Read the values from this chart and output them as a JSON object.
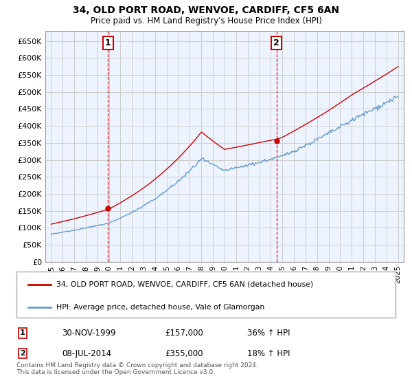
{
  "title": "34, OLD PORT ROAD, WENVOE, CARDIFF, CF5 6AN",
  "subtitle": "Price paid vs. HM Land Registry's House Price Index (HPI)",
  "legend_line1": "34, OLD PORT ROAD, WENVOE, CARDIFF, CF5 6AN (detached house)",
  "legend_line2": "HPI: Average price, detached house, Vale of Glamorgan",
  "footer": "Contains HM Land Registry data © Crown copyright and database right 2024.\nThis data is licensed under the Open Government Licence v3.0.",
  "sale1_label": "1",
  "sale1_date": "30-NOV-1999",
  "sale1_price": "£157,000",
  "sale1_hpi": "36% ↑ HPI",
  "sale2_label": "2",
  "sale2_date": "08-JUL-2014",
  "sale2_price": "£355,000",
  "sale2_hpi": "18% ↑ HPI",
  "red_color": "#cc0000",
  "blue_color": "#6699cc",
  "grid_color": "#cccccc",
  "bg_color": "#ddeeff",
  "plot_bg": "#eef4ff",
  "ylim": [
    0,
    680000
  ],
  "yticks": [
    0,
    50000,
    100000,
    150000,
    200000,
    250000,
    300000,
    350000,
    400000,
    450000,
    500000,
    550000,
    600000,
    650000
  ],
  "xtick_years": [
    1995,
    1996,
    1997,
    1998,
    1999,
    2000,
    2001,
    2002,
    2003,
    2004,
    2005,
    2006,
    2007,
    2008,
    2009,
    2010,
    2011,
    2012,
    2013,
    2014,
    2015,
    2016,
    2017,
    2018,
    2019,
    2020,
    2021,
    2022,
    2023,
    2024,
    2025
  ],
  "sale1_x": 1999.92,
  "sale2_x": 2014.52,
  "sale1_y": 157000,
  "sale2_y": 355000
}
